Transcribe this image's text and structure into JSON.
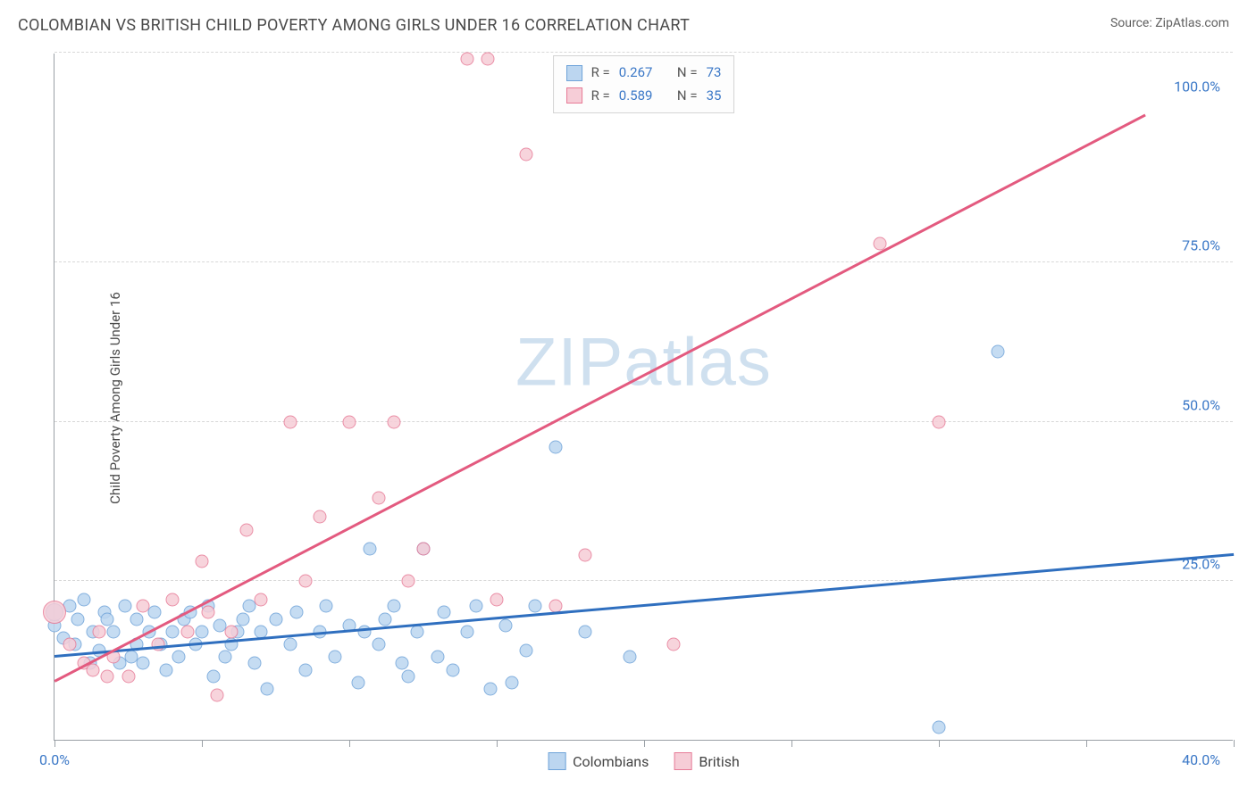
{
  "title": "COLOMBIAN VS BRITISH CHILD POVERTY AMONG GIRLS UNDER 16 CORRELATION CHART",
  "source": "Source: ZipAtlas.com",
  "watermark": "ZIPatlas",
  "y_axis_label": "Child Poverty Among Girls Under 16",
  "chart": {
    "type": "scatter",
    "xlim": [
      0,
      40
    ],
    "ylim": [
      0,
      108
    ],
    "x_ticks": [
      0,
      5,
      10,
      15,
      20,
      25,
      30,
      35,
      40
    ],
    "x_tick_labels_shown": {
      "0": "0.0%",
      "40": "40.0%"
    },
    "y_grid": [
      25,
      50,
      75,
      108
    ],
    "y_tick_labels": {
      "25": "25.0%",
      "50": "50.0%",
      "75": "75.0%",
      "100": "100.0%"
    },
    "background_color": "#ffffff",
    "grid_color": "#d8d8d8",
    "axis_color": "#9aa0a6",
    "tick_label_color": "#3b78c7",
    "title_color": "#4a4a4a",
    "title_fontsize": 18,
    "label_fontsize": 15,
    "tick_fontsize": 16
  },
  "series": [
    {
      "name": "Colombians",
      "marker_fill": "#bcd6f0",
      "marker_stroke": "#6fa3d9",
      "marker_opacity": 0.85,
      "marker_size": 15,
      "trend_color": "#2f6fbf",
      "trend_width": 2.5,
      "trend": {
        "x1": 0,
        "y1": 13,
        "x2": 40,
        "y2": 29
      },
      "R": "0.267",
      "N": "73",
      "points": [
        [
          0,
          18
        ],
        [
          0,
          20,
          20
        ],
        [
          0.3,
          16
        ],
        [
          0.5,
          21
        ],
        [
          0.7,
          15
        ],
        [
          0.8,
          19
        ],
        [
          1,
          22
        ],
        [
          1.2,
          12
        ],
        [
          1.3,
          17
        ],
        [
          1.5,
          14
        ],
        [
          1.7,
          20
        ],
        [
          1.8,
          19
        ],
        [
          2,
          17
        ],
        [
          2.2,
          12
        ],
        [
          2.4,
          21
        ],
        [
          2.6,
          13
        ],
        [
          2.8,
          15
        ],
        [
          2.8,
          19
        ],
        [
          3,
          12
        ],
        [
          3.2,
          17
        ],
        [
          3.4,
          20
        ],
        [
          3.6,
          15
        ],
        [
          3.8,
          11
        ],
        [
          4,
          17
        ],
        [
          4.2,
          13
        ],
        [
          4.4,
          19
        ],
        [
          4.6,
          20
        ],
        [
          4.8,
          15
        ],
        [
          5,
          17
        ],
        [
          5.2,
          21
        ],
        [
          5.4,
          10
        ],
        [
          5.6,
          18
        ],
        [
          5.8,
          13
        ],
        [
          6,
          15
        ],
        [
          6.2,
          17
        ],
        [
          6.4,
          19
        ],
        [
          6.6,
          21
        ],
        [
          6.8,
          12
        ],
        [
          7,
          17
        ],
        [
          7.2,
          8
        ],
        [
          7.5,
          19
        ],
        [
          8,
          15
        ],
        [
          8.2,
          20
        ],
        [
          8.5,
          11
        ],
        [
          9,
          17
        ],
        [
          9.2,
          21
        ],
        [
          9.5,
          13
        ],
        [
          10,
          18
        ],
        [
          10.3,
          9
        ],
        [
          10.5,
          17
        ],
        [
          10.7,
          30
        ],
        [
          11,
          15
        ],
        [
          11.2,
          19
        ],
        [
          11.5,
          21
        ],
        [
          11.8,
          12
        ],
        [
          12,
          10
        ],
        [
          12.3,
          17
        ],
        [
          12.5,
          30
        ],
        [
          13,
          13
        ],
        [
          13.2,
          20
        ],
        [
          13.5,
          11
        ],
        [
          14,
          17
        ],
        [
          14.3,
          21
        ],
        [
          14.8,
          8
        ],
        [
          15.3,
          18
        ],
        [
          15.5,
          9
        ],
        [
          16,
          14
        ],
        [
          16.3,
          21
        ],
        [
          17,
          46
        ],
        [
          18,
          17
        ],
        [
          19.5,
          13
        ],
        [
          30,
          2
        ],
        [
          32,
          61
        ]
      ]
    },
    {
      "name": "British",
      "marker_fill": "#f6cdd7",
      "marker_stroke": "#e77b97",
      "marker_opacity": 0.85,
      "marker_size": 15,
      "trend_color": "#e35a7f",
      "trend_width": 2.5,
      "trend": {
        "x1": 0,
        "y1": 9,
        "x2": 37,
        "y2": 98
      },
      "R": "0.589",
      "N": "35",
      "points": [
        [
          0,
          20,
          26
        ],
        [
          0.5,
          15
        ],
        [
          1,
          12
        ],
        [
          1.3,
          11
        ],
        [
          1.5,
          17
        ],
        [
          1.8,
          10
        ],
        [
          2,
          13
        ],
        [
          2.5,
          10
        ],
        [
          3,
          21
        ],
        [
          3.5,
          15
        ],
        [
          4,
          22
        ],
        [
          4.5,
          17
        ],
        [
          5,
          28
        ],
        [
          5.2,
          20
        ],
        [
          5.5,
          7
        ],
        [
          6,
          17
        ],
        [
          6.5,
          33
        ],
        [
          7,
          22
        ],
        [
          8,
          50
        ],
        [
          8.5,
          25
        ],
        [
          9,
          35
        ],
        [
          10,
          50
        ],
        [
          11,
          38
        ],
        [
          11.5,
          50
        ],
        [
          12,
          25
        ],
        [
          12.5,
          30
        ],
        [
          14,
          107
        ],
        [
          14.7,
          107
        ],
        [
          15,
          22
        ],
        [
          16,
          92
        ],
        [
          17,
          21
        ],
        [
          18,
          29
        ],
        [
          21,
          15
        ],
        [
          28,
          78
        ],
        [
          30,
          50
        ]
      ]
    }
  ],
  "legend_top": {
    "rows": [
      {
        "swatch_fill": "#bcd6f0",
        "swatch_stroke": "#6fa3d9",
        "r_label": "R =",
        "r_val": "0.267",
        "n_label": "N =",
        "n_val": "73"
      },
      {
        "swatch_fill": "#f6cdd7",
        "swatch_stroke": "#e77b97",
        "r_label": "R =",
        "r_val": "0.589",
        "n_label": "N =",
        "n_val": "35"
      }
    ]
  },
  "legend_bottom": [
    {
      "swatch_fill": "#bcd6f0",
      "swatch_stroke": "#6fa3d9",
      "label": "Colombians"
    },
    {
      "swatch_fill": "#f6cdd7",
      "swatch_stroke": "#e77b97",
      "label": "British"
    }
  ]
}
